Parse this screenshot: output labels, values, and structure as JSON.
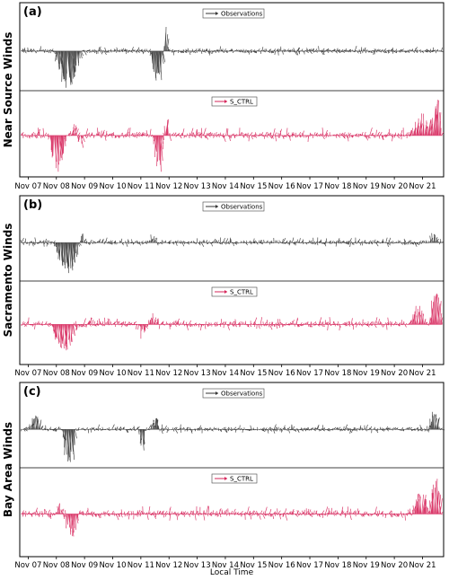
{
  "chart_data": {
    "type": "line",
    "xlabel": "Local Time",
    "x_ticks": [
      "Nov 07",
      "Nov 08",
      "Nov 09",
      "Nov 10",
      "Nov 11",
      "Nov 12",
      "Nov 13",
      "Nov 14",
      "Nov 15",
      "Nov 16",
      "Nov 17",
      "Nov 18",
      "Nov 19",
      "Nov 20",
      "Nov 21"
    ],
    "colors": {
      "observations": "#333333",
      "model": "#d6245a"
    },
    "panels": [
      {
        "label": "(a)",
        "ylabel": "Near Source Winds",
        "series": [
          {
            "name": "Observations",
            "color_key": "observations",
            "events": [
              [
                7.9,
                8.9,
                -1.0
              ],
              [
                11.3,
                11.85,
                -0.9
              ],
              [
                11.8,
                11.95,
                0.6
              ]
            ]
          },
          {
            "name": "S_CTRL",
            "color_key": "model",
            "events": [
              [
                7.7,
                8.4,
                -0.9
              ],
              [
                8.5,
                9.0,
                -0.6
              ],
              [
                8.5,
                8.9,
                0.8
              ],
              [
                11.4,
                11.95,
                -1.0
              ],
              [
                11.7,
                12.0,
                0.8
              ],
              [
                20.5,
                21.5,
                0.5
              ],
              [
                21.3,
                21.7,
                1.0
              ]
            ]
          }
        ]
      },
      {
        "label": "(b)",
        "ylabel": "Sacramento Winds",
        "series": [
          {
            "name": "Observations",
            "color_key": "observations",
            "events": [
              [
                7.9,
                8.9,
                -0.9
              ],
              [
                8.7,
                9.0,
                0.3
              ],
              [
                11.2,
                11.6,
                0.15
              ],
              [
                21.2,
                21.6,
                0.25
              ]
            ]
          },
          {
            "name": "S_CTRL",
            "color_key": "model",
            "events": [
              [
                7.8,
                8.7,
                -0.8
              ],
              [
                10.8,
                11.4,
                -0.3
              ],
              [
                11.0,
                11.7,
                0.25
              ],
              [
                20.5,
                21.2,
                0.4
              ],
              [
                21.2,
                21.7,
                1.0
              ]
            ]
          }
        ]
      },
      {
        "label": "(c)",
        "ylabel": "Bay Area Winds",
        "series": [
          {
            "name": "Observations",
            "color_key": "observations",
            "events": [
              [
                8.2,
                8.7,
                -1.0
              ],
              [
                10.9,
                11.2,
                -0.5
              ],
              [
                7.0,
                7.5,
                0.35
              ],
              [
                11.3,
                11.7,
                0.3
              ],
              [
                21.2,
                21.6,
                0.55
              ]
            ]
          },
          {
            "name": "S_CTRL",
            "color_key": "model",
            "events": [
              [
                8.1,
                8.8,
                -0.8
              ],
              [
                8.0,
                8.6,
                0.45
              ],
              [
                20.6,
                21.2,
                0.6
              ],
              [
                21.2,
                21.7,
                1.0
              ]
            ]
          }
        ]
      }
    ]
  }
}
